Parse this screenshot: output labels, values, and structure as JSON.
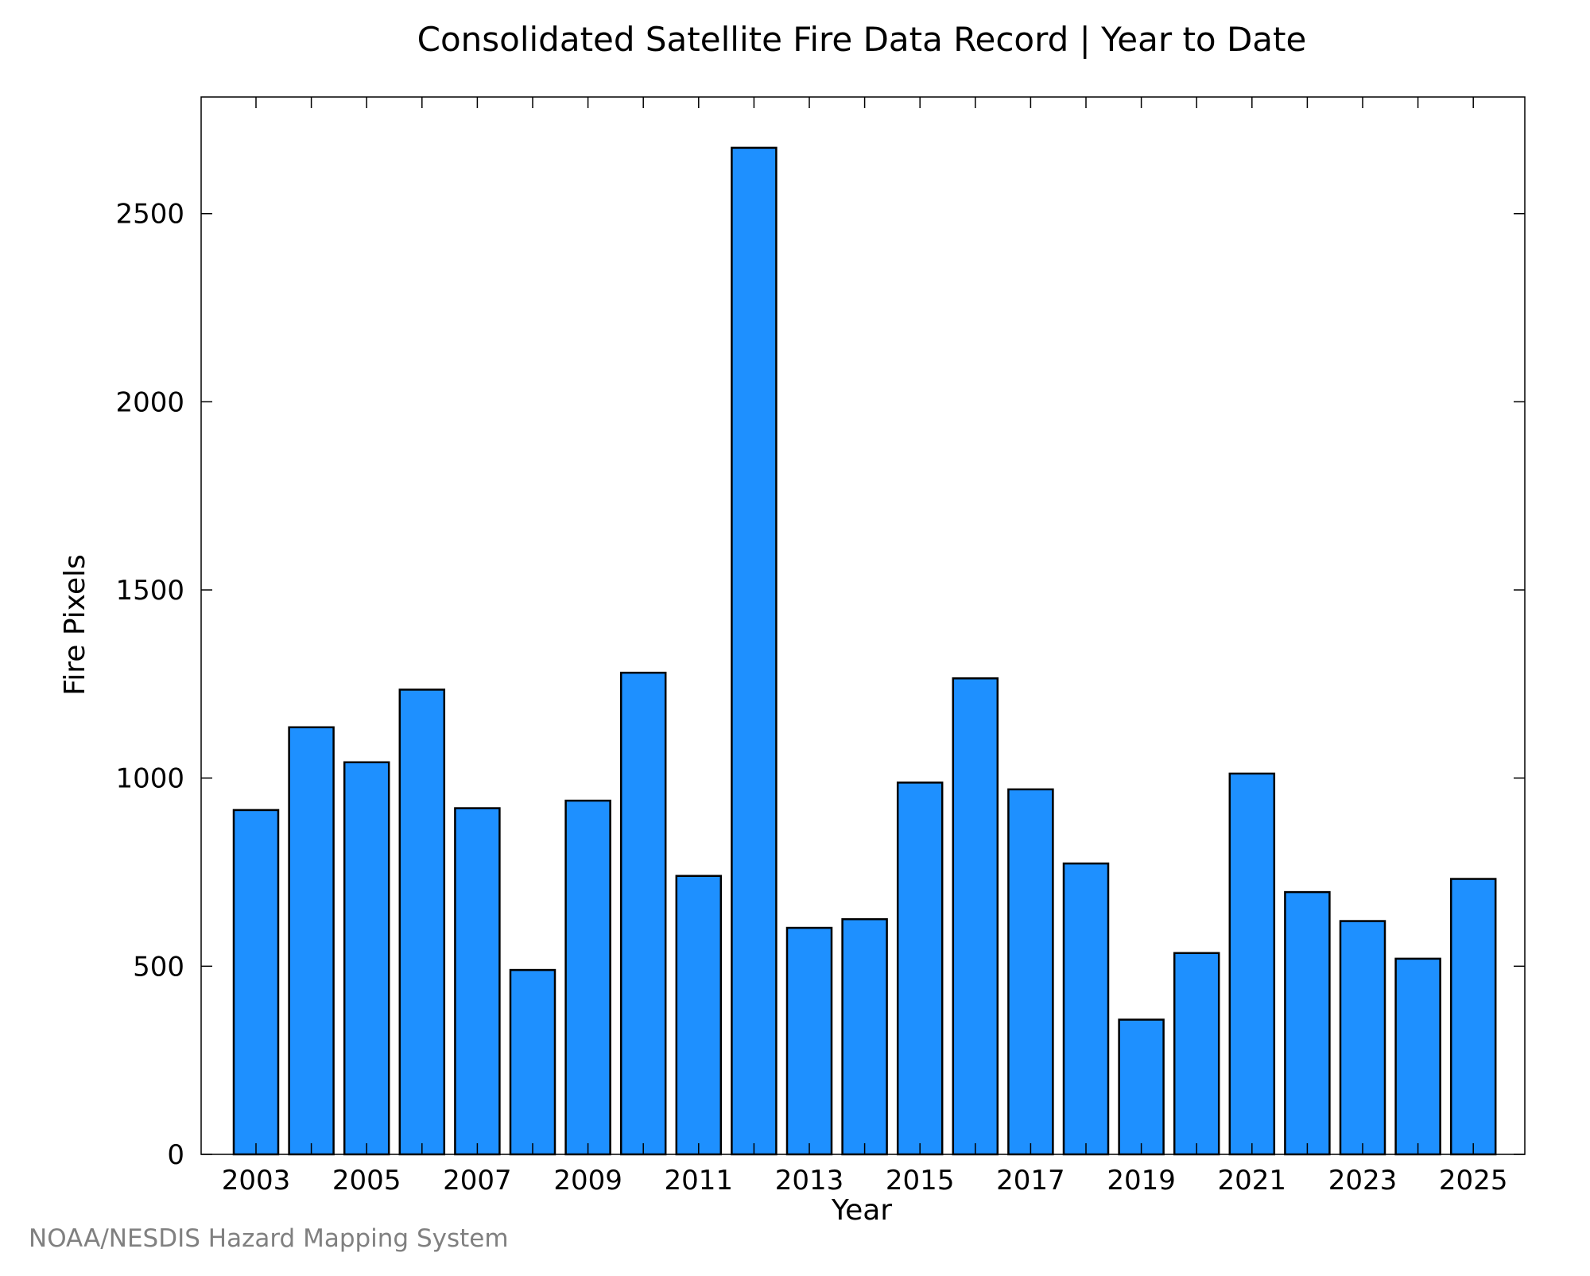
{
  "chart_data": {
    "type": "bar",
    "title": "Consolidated Satellite Fire Data Record | Year to Date",
    "xlabel": "Year",
    "ylabel": "Fire Pixels",
    "categories": [
      "2003",
      "2004",
      "2005",
      "2006",
      "2007",
      "2008",
      "2009",
      "2010",
      "2011",
      "2012",
      "2013",
      "2014",
      "2015",
      "2016",
      "2017",
      "2018",
      "2019",
      "2020",
      "2021",
      "2022",
      "2023",
      "2024",
      "2025"
    ],
    "values": [
      915,
      1135,
      1042,
      1235,
      920,
      490,
      940,
      1280,
      740,
      2675,
      602,
      625,
      988,
      1265,
      970,
      773,
      358,
      535,
      1012,
      697,
      620,
      520,
      732
    ],
    "x_tick_labels": [
      "2003",
      "2005",
      "2007",
      "2009",
      "2011",
      "2013",
      "2015",
      "2017",
      "2019",
      "2021",
      "2023",
      "2025"
    ],
    "y_ticks": [
      0,
      500,
      1000,
      1500,
      2000,
      2500
    ],
    "ylim": [
      0,
      2810
    ],
    "grid": false,
    "legend": "none",
    "bar_color": "#1E90FF",
    "bar_edge_color": "#000000"
  },
  "footer": {
    "credit": "NOAA/NESDIS Hazard Mapping System"
  }
}
